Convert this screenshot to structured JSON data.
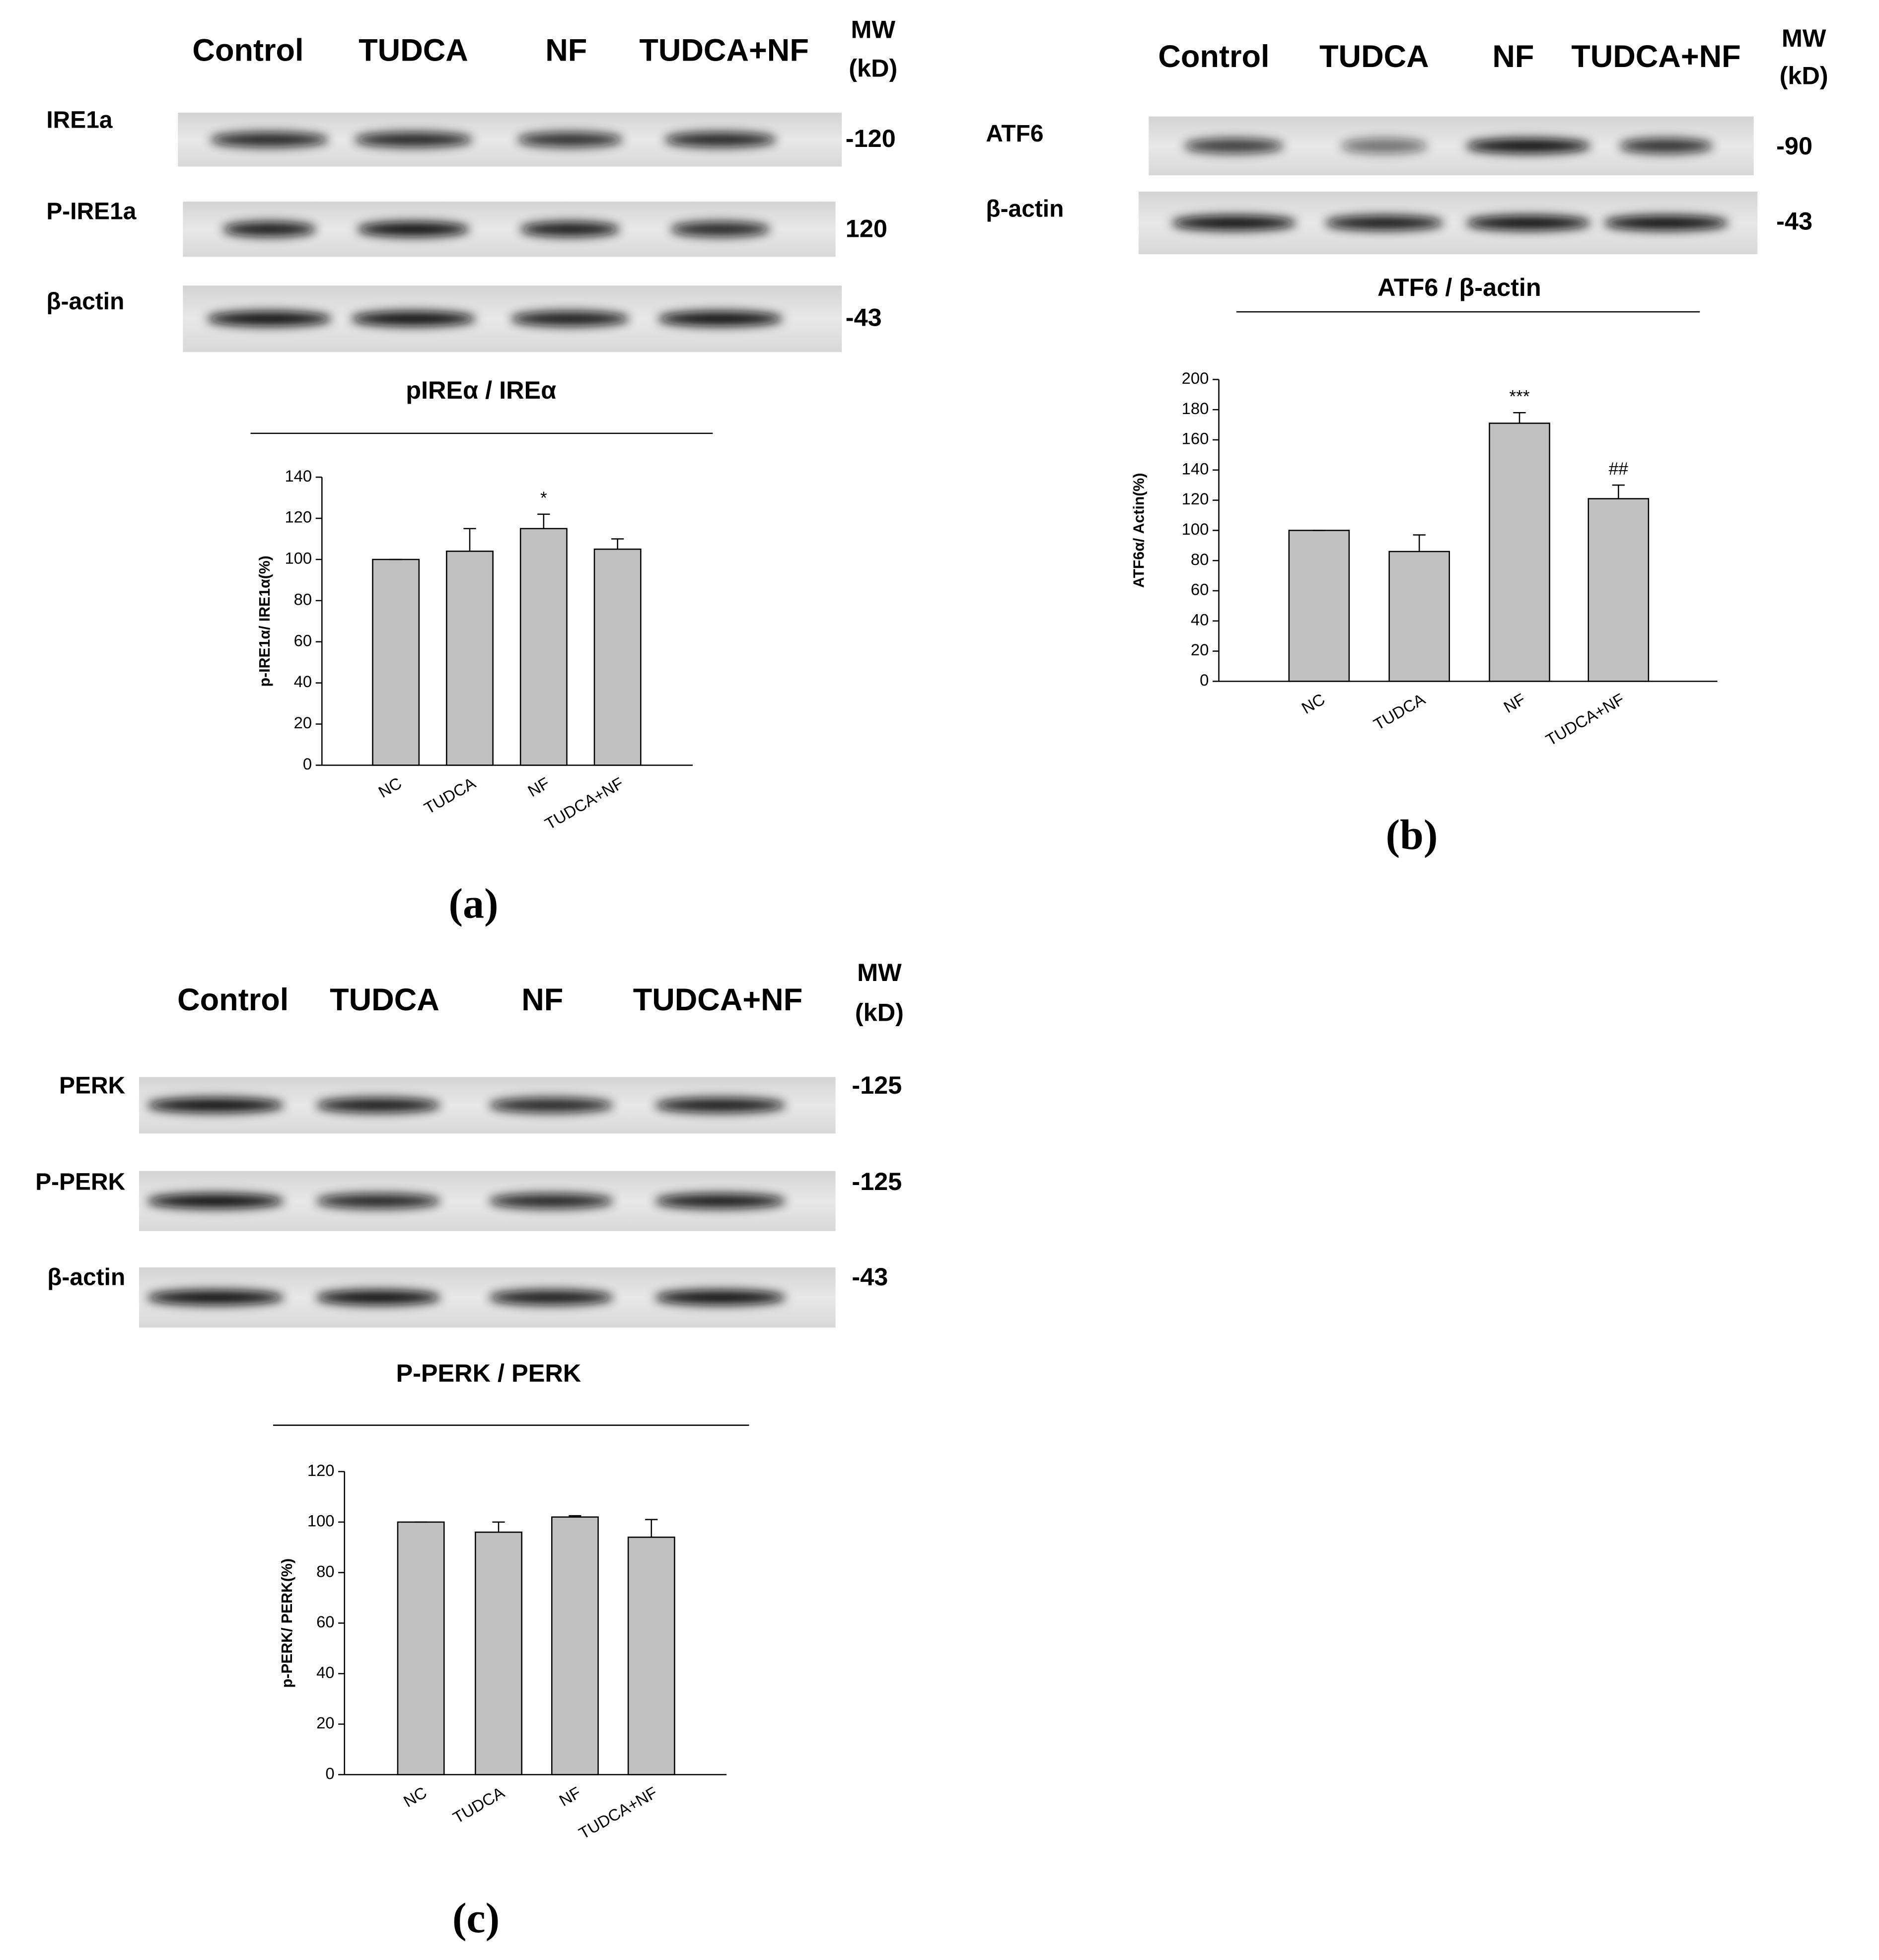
{
  "chart_data": [
    {
      "type": "bar",
      "panel": "(a)",
      "blot": {
        "lanes": [
          "Control",
          "TUDCA",
          "NF",
          "TUDCA+NF"
        ],
        "mw_header": [
          "MW",
          "(kD)"
        ],
        "rows": [
          {
            "label": "IRE1a",
            "mw": "-120"
          },
          {
            "label": "P-IRE1a",
            "mw": "120"
          },
          {
            "label": "β-actin",
            "mw": "-43"
          }
        ]
      },
      "title": "pIREα / IREα",
      "ylabel": "p-IRE1α/ IRE1α(%)",
      "categories": [
        "NC",
        "TUDCA",
        "NF",
        "TUDCA+NF"
      ],
      "values": [
        100,
        104,
        115,
        105
      ],
      "errors": [
        0,
        11,
        7,
        5
      ],
      "annotations": [
        {
          "category": "NF",
          "text": "*"
        }
      ],
      "color": "#c0c0c0",
      "ylim": [
        0,
        140
      ],
      "yticks": [
        0,
        20,
        40,
        60,
        80,
        100,
        120,
        140
      ]
    },
    {
      "type": "bar",
      "panel": "(b)",
      "blot": {
        "lanes": [
          "Control",
          "TUDCA",
          "NF",
          "TUDCA+NF"
        ],
        "mw_header": [
          "MW",
          "(kD)"
        ],
        "rows": [
          {
            "label": "ATF6",
            "mw": "-90"
          },
          {
            "label": "β-actin",
            "mw": "-43"
          }
        ]
      },
      "title": "ATF6 / β-actin",
      "ylabel": "ATF6α/ Actin(%)",
      "categories": [
        "NC",
        "TUDCA",
        "NF",
        "TUDCA+NF"
      ],
      "values": [
        100,
        86,
        171,
        121
      ],
      "errors": [
        0,
        11,
        7,
        9
      ],
      "annotations": [
        {
          "category": "NF",
          "text": "***"
        },
        {
          "category": "TUDCA+NF",
          "text": "##"
        }
      ],
      "color": "#c0c0c0",
      "ylim": [
        0,
        200
      ],
      "yticks": [
        0,
        20,
        40,
        60,
        80,
        100,
        120,
        140,
        160,
        180,
        200
      ]
    },
    {
      "type": "bar",
      "panel": "(c)",
      "blot": {
        "lanes": [
          "Control",
          "TUDCA",
          "NF",
          "TUDCA+NF"
        ],
        "mw_header": [
          "MW",
          "(kD)"
        ],
        "rows": [
          {
            "label": "PERK",
            "mw": "-125"
          },
          {
            "label": "P-PERK",
            "mw": "-125"
          },
          {
            "label": "β-actin",
            "mw": "-43"
          }
        ]
      },
      "title": "P-PERK / PERK",
      "ylabel": "p-PERK/ PERK(%)",
      "categories": [
        "NC",
        "TUDCA",
        "NF",
        "TUDCA+NF"
      ],
      "values": [
        100,
        96,
        102,
        94
      ],
      "errors": [
        0,
        4,
        0.5,
        7
      ],
      "color": "#c0c0c0",
      "ylim": [
        0,
        120
      ],
      "yticks": [
        0,
        20,
        40,
        60,
        80,
        100,
        120
      ]
    }
  ]
}
